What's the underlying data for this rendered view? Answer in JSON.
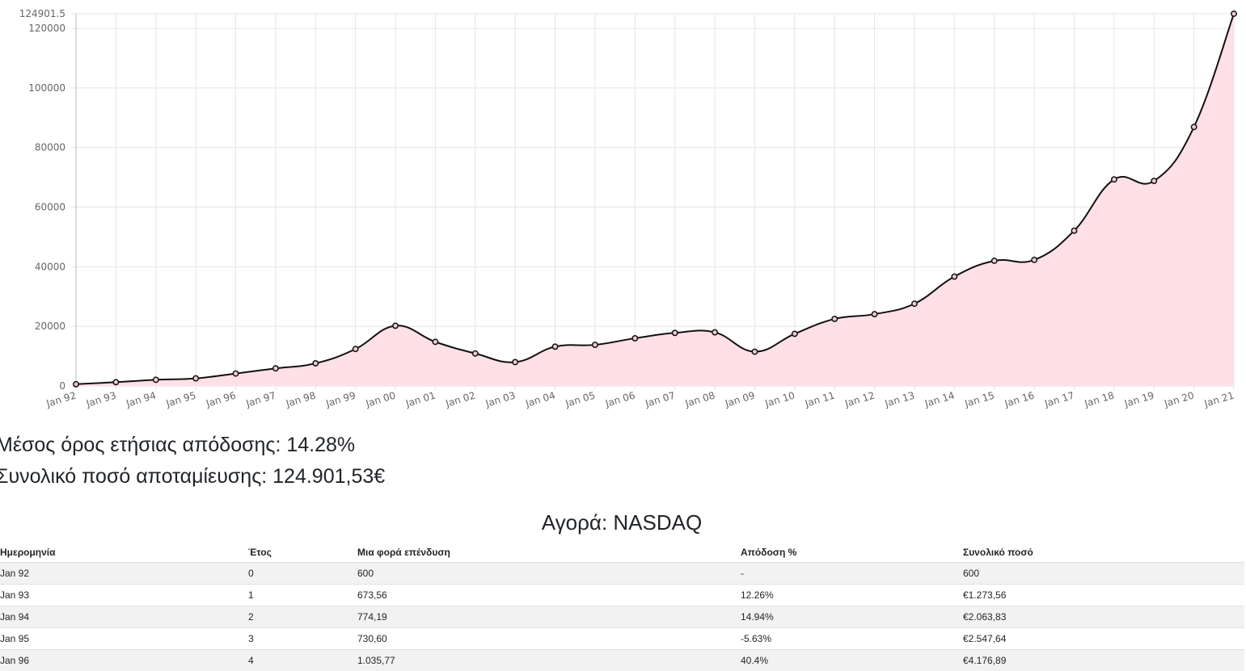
{
  "chart_data": {
    "type": "area",
    "x": [
      "Jan 92",
      "Jan 93",
      "Jan 94",
      "Jan 95",
      "Jan 96",
      "Jan 97",
      "Jan 98",
      "Jan 99",
      "Jan 00",
      "Jan 01",
      "Jan 02",
      "Jan 03",
      "Jan 04",
      "Jan 05",
      "Jan 06",
      "Jan 07",
      "Jan 08",
      "Jan 09",
      "Jan 10",
      "Jan 11",
      "Jan 12",
      "Jan 13",
      "Jan 14",
      "Jan 15",
      "Jan 16",
      "Jan 17",
      "Jan 18",
      "Jan 19",
      "Jan 20",
      "Jan 21"
    ],
    "values": [
      600,
      1273.56,
      2063.83,
      2547.64,
      4176.89,
      5900,
      7600,
      12400,
      20200,
      14800,
      10900,
      8000,
      13200,
      13800,
      16000,
      17800,
      18000,
      11500,
      17500,
      22500,
      24100,
      27600,
      36700,
      42000,
      42300,
      52100,
      69300,
      68800,
      86900,
      124901.53
    ],
    "ylim": [
      0,
      124901.53
    ],
    "yticks": [
      0,
      20000,
      40000,
      60000,
      80000,
      100000,
      120000,
      124901.5
    ],
    "ytick_labels": [
      "0",
      "20000",
      "40000",
      "60000",
      "80000",
      "100000",
      "120000",
      "124901.5"
    ],
    "grid": true,
    "legend": "none",
    "colors": {
      "fill": "#ffe0e6",
      "line": "#111111",
      "grid": "#e5e5e5"
    }
  },
  "summary": {
    "avg_return_text": "Μέσος όρος ετήσιας απόδοσης: 14.28%",
    "total_text": "Συνολικό ποσό αποταμίευσης: 124.901,53€"
  },
  "market_title": "Αγορά: NASDAQ",
  "table": {
    "headers": [
      "Ημερομηνία",
      "Έτος",
      "Μια φορά επένδυση",
      "Απόδοση %",
      "Συνολικό ποσό"
    ],
    "rows": [
      [
        "Jan 92",
        "0",
        "600",
        "-",
        "600"
      ],
      [
        "Jan 93",
        "1",
        "673,56",
        "12.26%",
        "€1.273,56"
      ],
      [
        "Jan 94",
        "2",
        "774,19",
        "14.94%",
        "€2.063,83"
      ],
      [
        "Jan 95",
        "3",
        "730,60",
        "-5.63%",
        "€2.547,64"
      ],
      [
        "Jan 96",
        "4",
        "1.035,77",
        "40.4%",
        "€4.176,89"
      ]
    ]
  }
}
